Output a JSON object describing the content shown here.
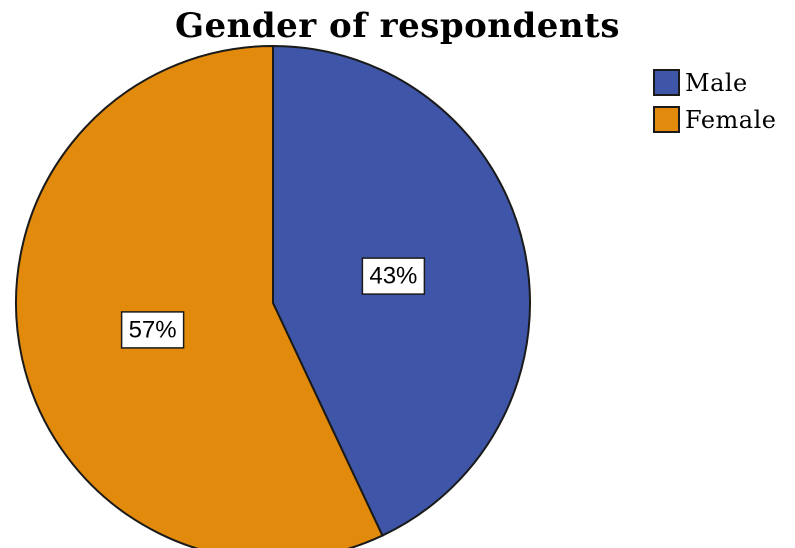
{
  "chart_data": {
    "type": "pie",
    "title": "Gender of respondents",
    "categories": [
      "Male",
      "Female"
    ],
    "values": [
      43,
      57
    ],
    "data_labels": [
      "43%",
      "57%"
    ],
    "colors": [
      "#3f56a8",
      "#e28a0b"
    ],
    "legend_placement": "top-right",
    "start_angle_deg": 0,
    "direction": "clockwise"
  },
  "legend": {
    "items": [
      {
        "label": "Male",
        "color": "#3f56a8"
      },
      {
        "label": "Female",
        "color": "#e28a0b"
      }
    ]
  }
}
